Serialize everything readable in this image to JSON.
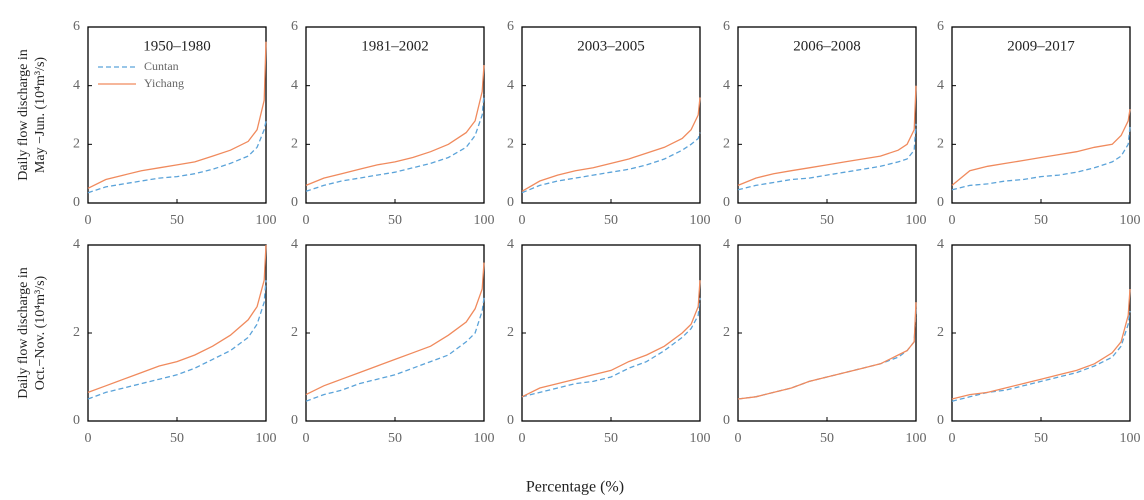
{
  "xlabel": "Percentage (%)",
  "chart_data": [
    {
      "type": "line",
      "title": "1950–1980",
      "ylabel": [
        "Daily flow discharge in",
        "May −Jun. (10⁴m³/s)"
      ],
      "x": [
        0,
        10,
        20,
        30,
        40,
        50,
        60,
        70,
        80,
        90,
        95,
        99,
        100
      ],
      "xlim": [
        0,
        100
      ],
      "xticks": [
        0,
        50,
        100
      ],
      "ylim": [
        0,
        6
      ],
      "yticks": [
        0,
        2,
        4,
        6
      ],
      "series": [
        {
          "name": "Cuntan",
          "color": "#5ba3d9",
          "linestyle": "dashed",
          "values": [
            0.35,
            0.55,
            0.65,
            0.75,
            0.85,
            0.9,
            1.0,
            1.15,
            1.35,
            1.6,
            1.9,
            2.5,
            2.8
          ]
        },
        {
          "name": "Yichang",
          "color": "#f08a5d",
          "linestyle": "solid",
          "values": [
            0.5,
            0.8,
            0.95,
            1.1,
            1.2,
            1.3,
            1.4,
            1.6,
            1.8,
            2.1,
            2.5,
            3.5,
            5.5
          ]
        }
      ]
    },
    {
      "type": "line",
      "title": "1981–2002",
      "x": [
        0,
        10,
        20,
        30,
        40,
        50,
        60,
        70,
        80,
        90,
        95,
        99,
        100
      ],
      "xlim": [
        0,
        100
      ],
      "xticks": [
        0,
        50,
        100
      ],
      "ylim": [
        0,
        6
      ],
      "yticks": [
        0,
        2,
        4,
        6
      ],
      "series": [
        {
          "color": "#5ba3d9",
          "linestyle": "dashed",
          "values": [
            0.4,
            0.6,
            0.75,
            0.85,
            0.95,
            1.05,
            1.2,
            1.35,
            1.55,
            1.9,
            2.3,
            3.0,
            3.7
          ]
        },
        {
          "color": "#f08a5d",
          "linestyle": "solid",
          "values": [
            0.6,
            0.85,
            1.0,
            1.15,
            1.3,
            1.4,
            1.55,
            1.75,
            2.0,
            2.4,
            2.8,
            3.8,
            4.7
          ]
        }
      ]
    },
    {
      "type": "line",
      "title": "2003–2005",
      "x": [
        0,
        10,
        20,
        30,
        40,
        50,
        60,
        70,
        80,
        90,
        95,
        99,
        100
      ],
      "xlim": [
        0,
        100
      ],
      "xticks": [
        0,
        50,
        100
      ],
      "ylim": [
        0,
        6
      ],
      "yticks": [
        0,
        2,
        4,
        6
      ],
      "series": [
        {
          "color": "#5ba3d9",
          "linestyle": "dashed",
          "values": [
            0.35,
            0.6,
            0.75,
            0.85,
            0.95,
            1.05,
            1.15,
            1.3,
            1.5,
            1.8,
            2.0,
            2.2,
            2.4
          ]
        },
        {
          "color": "#f08a5d",
          "linestyle": "solid",
          "values": [
            0.4,
            0.75,
            0.95,
            1.1,
            1.2,
            1.35,
            1.5,
            1.7,
            1.9,
            2.2,
            2.5,
            3.0,
            3.6
          ]
        }
      ]
    },
    {
      "type": "line",
      "title": "2006–2008",
      "x": [
        0,
        10,
        20,
        30,
        40,
        50,
        60,
        70,
        80,
        90,
        95,
        99,
        100
      ],
      "xlim": [
        0,
        100
      ],
      "xticks": [
        0,
        50,
        100
      ],
      "ylim": [
        0,
        6
      ],
      "yticks": [
        0,
        2,
        4,
        6
      ],
      "series": [
        {
          "color": "#5ba3d9",
          "linestyle": "dashed",
          "values": [
            0.45,
            0.6,
            0.7,
            0.8,
            0.85,
            0.95,
            1.05,
            1.15,
            1.25,
            1.4,
            1.5,
            1.8,
            2.7
          ]
        },
        {
          "color": "#f08a5d",
          "linestyle": "solid",
          "values": [
            0.6,
            0.85,
            1.0,
            1.1,
            1.2,
            1.3,
            1.4,
            1.5,
            1.6,
            1.8,
            2.0,
            2.5,
            4.0
          ]
        }
      ]
    },
    {
      "type": "line",
      "title": "2009–2017",
      "x": [
        0,
        10,
        20,
        30,
        40,
        50,
        60,
        70,
        80,
        90,
        95,
        99,
        100
      ],
      "xlim": [
        0,
        100
      ],
      "xticks": [
        0,
        50,
        100
      ],
      "ylim": [
        0,
        6
      ],
      "yticks": [
        0,
        2,
        4,
        6
      ],
      "series": [
        {
          "color": "#5ba3d9",
          "linestyle": "dashed",
          "values": [
            0.45,
            0.6,
            0.65,
            0.75,
            0.8,
            0.9,
            0.95,
            1.05,
            1.2,
            1.4,
            1.6,
            2.0,
            2.6
          ]
        },
        {
          "color": "#f08a5d",
          "linestyle": "solid",
          "values": [
            0.6,
            1.1,
            1.25,
            1.35,
            1.45,
            1.55,
            1.65,
            1.75,
            1.9,
            2.0,
            2.3,
            2.8,
            3.2
          ]
        }
      ]
    },
    {
      "type": "line",
      "ylabel": [
        "Daily flow discharge in",
        "Oct.−Nov. (10⁴m³/s)"
      ],
      "x": [
        0,
        10,
        20,
        30,
        40,
        50,
        60,
        70,
        80,
        90,
        95,
        99,
        100
      ],
      "xlim": [
        0,
        100
      ],
      "xticks": [
        0,
        50,
        100
      ],
      "ylim": [
        0,
        4
      ],
      "yticks": [
        0,
        2,
        4
      ],
      "series": [
        {
          "color": "#5ba3d9",
          "linestyle": "dashed",
          "values": [
            0.5,
            0.65,
            0.75,
            0.85,
            0.95,
            1.05,
            1.2,
            1.4,
            1.6,
            1.9,
            2.2,
            2.7,
            3.2
          ]
        },
        {
          "color": "#f08a5d",
          "linestyle": "solid",
          "values": [
            0.65,
            0.8,
            0.95,
            1.1,
            1.25,
            1.35,
            1.5,
            1.7,
            1.95,
            2.3,
            2.6,
            3.2,
            4.0
          ]
        }
      ]
    },
    {
      "type": "line",
      "x": [
        0,
        10,
        20,
        30,
        40,
        50,
        60,
        70,
        80,
        90,
        95,
        99,
        100
      ],
      "xlim": [
        0,
        100
      ],
      "xticks": [
        0,
        50,
        100
      ],
      "ylim": [
        0,
        4
      ],
      "yticks": [
        0,
        2,
        4
      ],
      "series": [
        {
          "color": "#5ba3d9",
          "linestyle": "dashed",
          "values": [
            0.45,
            0.6,
            0.7,
            0.85,
            0.95,
            1.05,
            1.2,
            1.35,
            1.5,
            1.8,
            2.0,
            2.5,
            2.8
          ]
        },
        {
          "color": "#f08a5d",
          "linestyle": "solid",
          "values": [
            0.6,
            0.8,
            0.95,
            1.1,
            1.25,
            1.4,
            1.55,
            1.7,
            1.95,
            2.25,
            2.55,
            3.0,
            3.6
          ]
        }
      ]
    },
    {
      "type": "line",
      "x": [
        0,
        10,
        20,
        30,
        40,
        50,
        60,
        70,
        80,
        90,
        95,
        99,
        100
      ],
      "xlim": [
        0,
        100
      ],
      "xticks": [
        0,
        50,
        100
      ],
      "ylim": [
        0,
        4
      ],
      "yticks": [
        0,
        2,
        4
      ],
      "series": [
        {
          "color": "#5ba3d9",
          "linestyle": "dashed",
          "values": [
            0.55,
            0.65,
            0.75,
            0.85,
            0.9,
            1.0,
            1.2,
            1.35,
            1.6,
            1.9,
            2.1,
            2.4,
            2.8
          ]
        },
        {
          "color": "#f08a5d",
          "linestyle": "solid",
          "values": [
            0.55,
            0.75,
            0.85,
            0.95,
            1.05,
            1.15,
            1.35,
            1.5,
            1.7,
            2.0,
            2.2,
            2.6,
            3.2
          ]
        }
      ]
    },
    {
      "type": "line",
      "x": [
        0,
        10,
        20,
        30,
        40,
        50,
        60,
        70,
        80,
        90,
        95,
        99,
        100
      ],
      "xlim": [
        0,
        100
      ],
      "xticks": [
        0,
        50,
        100
      ],
      "ylim": [
        0,
        4
      ],
      "yticks": [
        0,
        2,
        4
      ],
      "series": [
        {
          "color": "#5ba3d9",
          "linestyle": "dashed",
          "values": [
            0.5,
            0.55,
            0.65,
            0.75,
            0.9,
            1.0,
            1.1,
            1.2,
            1.3,
            1.45,
            1.6,
            1.8,
            2.6
          ]
        },
        {
          "color": "#f08a5d",
          "linestyle": "solid",
          "values": [
            0.5,
            0.55,
            0.65,
            0.75,
            0.9,
            1.0,
            1.1,
            1.2,
            1.3,
            1.5,
            1.6,
            1.8,
            2.7
          ]
        }
      ]
    },
    {
      "type": "line",
      "x": [
        0,
        10,
        20,
        30,
        40,
        50,
        60,
        70,
        80,
        90,
        95,
        99,
        100
      ],
      "xlim": [
        0,
        100
      ],
      "xticks": [
        0,
        50,
        100
      ],
      "ylim": [
        0,
        4
      ],
      "yticks": [
        0,
        2,
        4
      ],
      "series": [
        {
          "color": "#5ba3d9",
          "linestyle": "dashed",
          "values": [
            0.45,
            0.55,
            0.65,
            0.7,
            0.8,
            0.9,
            1.0,
            1.1,
            1.25,
            1.45,
            1.7,
            2.2,
            2.5
          ]
        },
        {
          "color": "#f08a5d",
          "linestyle": "solid",
          "values": [
            0.5,
            0.6,
            0.65,
            0.75,
            0.85,
            0.95,
            1.05,
            1.15,
            1.3,
            1.55,
            1.8,
            2.4,
            3.0
          ]
        }
      ]
    }
  ]
}
